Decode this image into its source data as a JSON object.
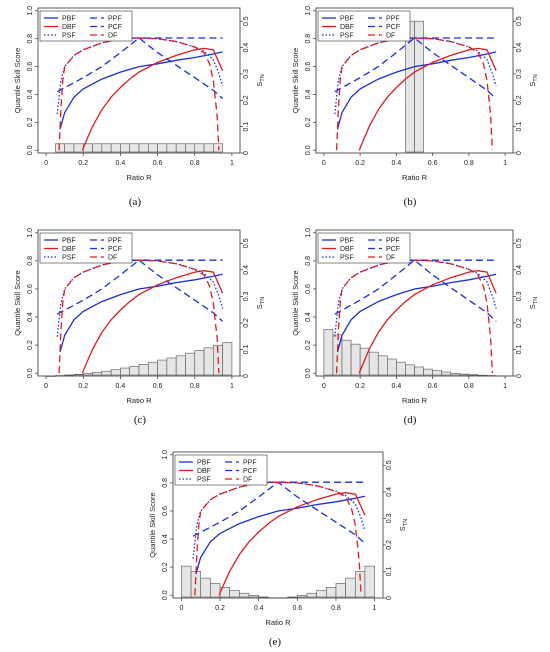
{
  "chart_data": [
    {
      "type": "line",
      "panel_label": "(a)",
      "xlabel": "Ratio R",
      "ylabel": "Quantile Skill Score",
      "y2label": "S_TN",
      "xlim": [
        0,
        1
      ],
      "ylim": [
        -0.02,
        1.02
      ],
      "y2lim": [
        0,
        0.55
      ],
      "x_ticks": [
        "0",
        "0.2",
        "0.4",
        "0.6",
        "0.8",
        "1"
      ],
      "y_ticks": [
        "0.0",
        "0.2",
        "0.4",
        "0.6",
        "0.8",
        "1.0"
      ],
      "y2_ticks": [
        "0",
        "0.1",
        "0.2",
        "0.3",
        "0.4",
        "0.5"
      ],
      "legend": [
        "PBF",
        "DBF",
        "PSF",
        "PPF",
        "PCF",
        "DF"
      ],
      "histogram": {
        "bins_center": [
          0.075,
          0.125,
          0.175,
          0.225,
          0.275,
          0.325,
          0.375,
          0.425,
          0.475,
          0.525,
          0.575,
          0.625,
          0.675,
          0.725,
          0.775,
          0.825,
          0.875,
          0.925
        ],
        "heights": [
          0.035,
          0.035,
          0.035,
          0.035,
          0.035,
          0.035,
          0.035,
          0.035,
          0.035,
          0.035,
          0.035,
          0.035,
          0.035,
          0.035,
          0.035,
          0.035,
          0.035,
          0.035
        ]
      }
    },
    {
      "type": "line",
      "panel_label": "(b)",
      "xlabel": "Ratio R",
      "ylabel": "Quantile Skill Score",
      "y2label": "S_TN",
      "xlim": [
        0,
        1
      ],
      "ylim": [
        -0.02,
        1.02
      ],
      "y2lim": [
        0,
        0.55
      ],
      "x_ticks": [
        "0",
        "0.2",
        "0.4",
        "0.6",
        "0.8",
        "1"
      ],
      "y_ticks": [
        "0.0",
        "0.2",
        "0.4",
        "0.6",
        "0.8",
        "1.0"
      ],
      "y2_ticks": [
        "0",
        "0.1",
        "0.2",
        "0.3",
        "0.4",
        "0.5"
      ],
      "legend": [
        "PBF",
        "DBF",
        "PSF",
        "PPF",
        "PCF",
        "DF"
      ],
      "histogram": {
        "bins_center": [
          0.475,
          0.525
        ],
        "heights": [
          0.5,
          0.5
        ]
      }
    },
    {
      "type": "line",
      "panel_label": "(c)",
      "xlabel": "Ratio R",
      "ylabel": "Quantile Skill Score",
      "y2label": "S_TN",
      "xlim": [
        0,
        1
      ],
      "ylim": [
        -0.02,
        1.02
      ],
      "y2lim": [
        0,
        0.55
      ],
      "x_ticks": [
        "0",
        "0.2",
        "0.4",
        "0.6",
        "0.8",
        "1"
      ],
      "y_ticks": [
        "0.0",
        "0.2",
        "0.4",
        "0.6",
        "0.8",
        "1.0"
      ],
      "y2_ticks": [
        "0",
        "0.1",
        "0.2",
        "0.3",
        "0.4",
        "0.5"
      ],
      "legend": [
        "PBF",
        "DBF",
        "PSF",
        "PPF",
        "PCF",
        "DF"
      ],
      "histogram": {
        "bins_center": [
          0.025,
          0.075,
          0.125,
          0.175,
          0.225,
          0.275,
          0.325,
          0.375,
          0.425,
          0.475,
          0.525,
          0.575,
          0.625,
          0.675,
          0.725,
          0.775,
          0.825,
          0.875,
          0.925,
          0.975
        ],
        "heights": [
          0.0,
          0.002,
          0.004,
          0.006,
          0.01,
          0.014,
          0.018,
          0.024,
          0.03,
          0.036,
          0.044,
          0.052,
          0.06,
          0.068,
          0.076,
          0.086,
          0.096,
          0.106,
          0.116,
          0.126
        ]
      }
    },
    {
      "type": "line",
      "panel_label": "(d)",
      "xlabel": "Ratio R",
      "ylabel": "Quantile Skill Score",
      "y2label": "S_TN",
      "xlim": [
        0,
        1
      ],
      "ylim": [
        -0.02,
        1.02
      ],
      "y2lim": [
        0,
        0.55
      ],
      "x_ticks": [
        "0",
        "0.2",
        "0.4",
        "0.6",
        "0.8",
        "1"
      ],
      "y_ticks": [
        "0.0",
        "0.2",
        "0.4",
        "0.6",
        "0.8",
        "1.0"
      ],
      "y2_ticks": [
        "0",
        "0.1",
        "0.2",
        "0.3",
        "0.4",
        "0.5"
      ],
      "legend": [
        "PBF",
        "DBF",
        "PSF",
        "PPF",
        "PCF",
        "DF"
      ],
      "histogram": {
        "bins_center": [
          0.025,
          0.075,
          0.125,
          0.175,
          0.225,
          0.275,
          0.325,
          0.375,
          0.425,
          0.475,
          0.525,
          0.575,
          0.625,
          0.675,
          0.725,
          0.775,
          0.825,
          0.875,
          0.925,
          0.975
        ],
        "heights": [
          0.175,
          0.155,
          0.135,
          0.12,
          0.105,
          0.09,
          0.076,
          0.064,
          0.052,
          0.042,
          0.034,
          0.026,
          0.02,
          0.015,
          0.01,
          0.007,
          0.005,
          0.003,
          0.002,
          0.001
        ]
      }
    },
    {
      "type": "line",
      "panel_label": "(e)",
      "xlabel": "Ratio R",
      "ylabel": "Quantile Skill Score",
      "y2label": "S_TN",
      "xlim": [
        0,
        1
      ],
      "ylim": [
        -0.02,
        1.02
      ],
      "y2lim": [
        0,
        0.55
      ],
      "x_ticks": [
        "0",
        "0.2",
        "0.4",
        "0.6",
        "0.8",
        "1"
      ],
      "y_ticks": [
        "0.0",
        "0.2",
        "0.4",
        "0.6",
        "0.8",
        "1.0"
      ],
      "y2_ticks": [
        "0",
        "0.1",
        "0.2",
        "0.3",
        "0.4",
        "0.5"
      ],
      "legend": [
        "PBF",
        "DBF",
        "PSF",
        "PPF",
        "PCF",
        "DF"
      ],
      "histogram": {
        "bins_center": [
          0.025,
          0.075,
          0.125,
          0.175,
          0.225,
          0.275,
          0.325,
          0.375,
          0.425,
          0.475,
          0.525,
          0.575,
          0.625,
          0.675,
          0.725,
          0.775,
          0.825,
          0.875,
          0.925,
          0.975
        ],
        "heights": [
          0.12,
          0.1,
          0.075,
          0.055,
          0.04,
          0.028,
          0.018,
          0.01,
          0.004,
          0.001,
          0.001,
          0.004,
          0.01,
          0.018,
          0.028,
          0.04,
          0.055,
          0.075,
          0.1,
          0.12
        ]
      }
    }
  ],
  "series": [
    {
      "name": "PBF",
      "color": "#1a2fd6",
      "dash": "solid",
      "x": [
        0.075,
        0.1,
        0.15,
        0.2,
        0.3,
        0.4,
        0.5,
        0.6,
        0.7,
        0.8,
        0.9,
        0.95
      ],
      "y": [
        0.15,
        0.27,
        0.38,
        0.44,
        0.51,
        0.56,
        0.6,
        0.62,
        0.645,
        0.665,
        0.69,
        0.705
      ]
    },
    {
      "name": "DBF",
      "color": "#e01b1b",
      "dash": "solid",
      "x": [
        0.195,
        0.22,
        0.25,
        0.3,
        0.35,
        0.4,
        0.45,
        0.5,
        0.6,
        0.7,
        0.8,
        0.85,
        0.9,
        0.95
      ],
      "y": [
        0.0,
        0.08,
        0.17,
        0.29,
        0.38,
        0.45,
        0.51,
        0.56,
        0.63,
        0.68,
        0.72,
        0.73,
        0.72,
        0.57
      ]
    },
    {
      "name": "PSF",
      "color": "#1a2fd6",
      "dash": "1.5,2",
      "x": [
        0.06,
        0.08,
        0.1,
        0.15,
        0.2,
        0.3,
        0.4,
        0.5,
        0.6,
        0.7,
        0.8,
        0.85,
        0.9,
        0.93,
        0.95
      ],
      "y": [
        0.26,
        0.5,
        0.6,
        0.68,
        0.72,
        0.77,
        0.8,
        0.805,
        0.8,
        0.78,
        0.74,
        0.71,
        0.65,
        0.55,
        0.46
      ]
    },
    {
      "name": "PPF",
      "color": "#1a2fd6",
      "dash": "7,4",
      "x": [
        0.05,
        0.95
      ],
      "y": [
        0.805,
        0.805
      ]
    },
    {
      "name": "PCF",
      "color": "#1a2fd6",
      "dash": "7,4",
      "x": [
        0.06,
        0.2,
        0.3,
        0.4,
        0.5,
        0.6,
        0.7,
        0.8,
        0.9,
        0.95
      ],
      "y": [
        0.42,
        0.52,
        0.6,
        0.7,
        0.805,
        0.7,
        0.61,
        0.52,
        0.43,
        0.37
      ]
    },
    {
      "name": "DF",
      "color": "#e01b1b",
      "dash": "7,4",
      "x": [
        0.07,
        0.08,
        0.09,
        0.1,
        0.15,
        0.2,
        0.3,
        0.4,
        0.5,
        0.6,
        0.7,
        0.8,
        0.85,
        0.88,
        0.9,
        0.92,
        0.93
      ],
      "y": [
        0.0,
        0.3,
        0.5,
        0.6,
        0.68,
        0.72,
        0.77,
        0.8,
        0.805,
        0.8,
        0.78,
        0.74,
        0.7,
        0.62,
        0.5,
        0.25,
        0.0
      ]
    }
  ]
}
